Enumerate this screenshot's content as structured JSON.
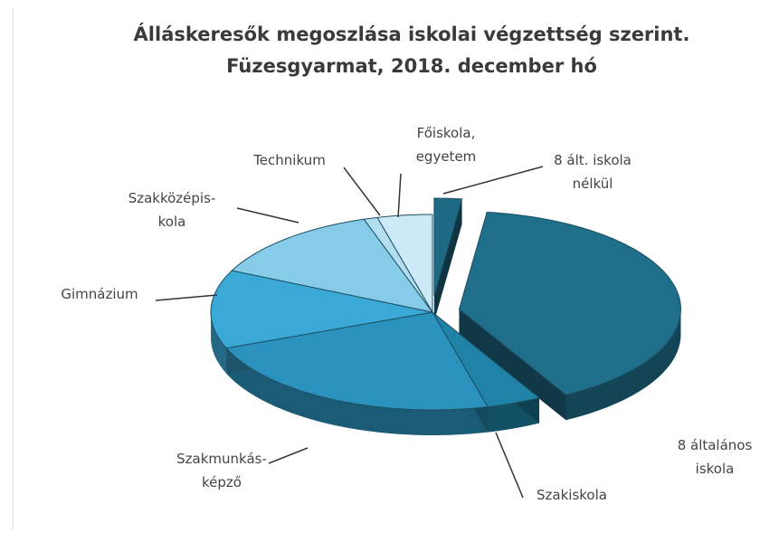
{
  "chart_data": {
    "type": "pie3d",
    "title": [
      "Álláskeresők megoszlása iskolai végzettség szerint.",
      "Füzesgyarmat, 2018. december hó"
    ],
    "categories": [
      [
        "8 ált. iskola",
        "nélkül"
      ],
      [
        "8 általános",
        "iskola"
      ],
      [
        "Szakiskola"
      ],
      [
        "Szakmunkás-",
        "képző"
      ],
      [
        "Gimnázium"
      ],
      [
        "Szakközépis-",
        "kola"
      ],
      [
        "Technikum"
      ],
      [
        "Főiskola,",
        "egyetem"
      ]
    ],
    "values": [
      2,
      40,
      4,
      23,
      13,
      13,
      1,
      4
    ],
    "colors": [
      "#1e6a85",
      "#1f6f8b",
      "#1f82a6",
      "#2a92bd",
      "#3ba9d6",
      "#86cbe8",
      "#b2def0",
      "#cbe9f6"
    ]
  }
}
